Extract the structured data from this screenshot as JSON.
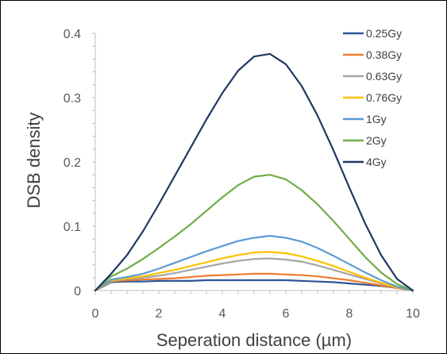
{
  "chart_data": {
    "type": "line",
    "title": "",
    "xlabel": "Seperation distance (µm)",
    "ylabel": "DSB density",
    "xlim": [
      0,
      10
    ],
    "ylim": [
      0,
      0.4
    ],
    "xticks": [
      "0",
      "2",
      "4",
      "6",
      "8",
      "10"
    ],
    "yticks": [
      "0",
      "0.1",
      "0.2",
      "0.3",
      "0.4"
    ],
    "grid": false,
    "legend_position": "top-right",
    "x": [
      0,
      0.5,
      1,
      1.5,
      2,
      2.5,
      3,
      3.5,
      4,
      4.5,
      5,
      5.5,
      6,
      6.5,
      7,
      7.5,
      8,
      8.5,
      9,
      9.5,
      10
    ],
    "series": [
      {
        "name": "0.25Gy",
        "color": "#2f5597",
        "values": [
          0,
          0.013,
          0.014,
          0.014,
          0.015,
          0.015,
          0.015,
          0.016,
          0.016,
          0.016,
          0.016,
          0.016,
          0.016,
          0.015,
          0.014,
          0.013,
          0.011,
          0.009,
          0.007,
          0.004,
          0
        ]
      },
      {
        "name": "0.38Gy",
        "color": "#ed7d31",
        "values": [
          0,
          0.014,
          0.016,
          0.017,
          0.018,
          0.019,
          0.021,
          0.023,
          0.024,
          0.025,
          0.026,
          0.026,
          0.025,
          0.024,
          0.022,
          0.019,
          0.016,
          0.012,
          0.008,
          0.004,
          0
        ]
      },
      {
        "name": "0.63Gy",
        "color": "#a5a5a5",
        "values": [
          0,
          0.015,
          0.018,
          0.02,
          0.023,
          0.027,
          0.032,
          0.037,
          0.042,
          0.046,
          0.049,
          0.05,
          0.048,
          0.045,
          0.039,
          0.032,
          0.025,
          0.018,
          0.011,
          0.005,
          0
        ]
      },
      {
        "name": "0.76Gy",
        "color": "#ffc000",
        "values": [
          0,
          0.016,
          0.019,
          0.022,
          0.027,
          0.032,
          0.038,
          0.044,
          0.05,
          0.055,
          0.059,
          0.06,
          0.058,
          0.053,
          0.046,
          0.038,
          0.029,
          0.02,
          0.012,
          0.005,
          0
        ]
      },
      {
        "name": "1Gy",
        "color": "#5b9bd5",
        "values": [
          0,
          0.017,
          0.021,
          0.026,
          0.034,
          0.043,
          0.052,
          0.061,
          0.069,
          0.077,
          0.082,
          0.085,
          0.082,
          0.076,
          0.066,
          0.054,
          0.041,
          0.028,
          0.016,
          0.006,
          0
        ]
      },
      {
        "name": "2Gy",
        "color": "#70ad47",
        "values": [
          0,
          0.022,
          0.034,
          0.049,
          0.066,
          0.084,
          0.103,
          0.124,
          0.145,
          0.164,
          0.177,
          0.18,
          0.173,
          0.156,
          0.134,
          0.108,
          0.08,
          0.052,
          0.028,
          0.01,
          0
        ]
      },
      {
        "name": "4Gy",
        "color": "#203864",
        "values": [
          0,
          0.026,
          0.055,
          0.092,
          0.134,
          0.178,
          0.222,
          0.266,
          0.307,
          0.342,
          0.364,
          0.368,
          0.352,
          0.318,
          0.272,
          0.218,
          0.16,
          0.104,
          0.055,
          0.018,
          0
        ]
      }
    ]
  }
}
